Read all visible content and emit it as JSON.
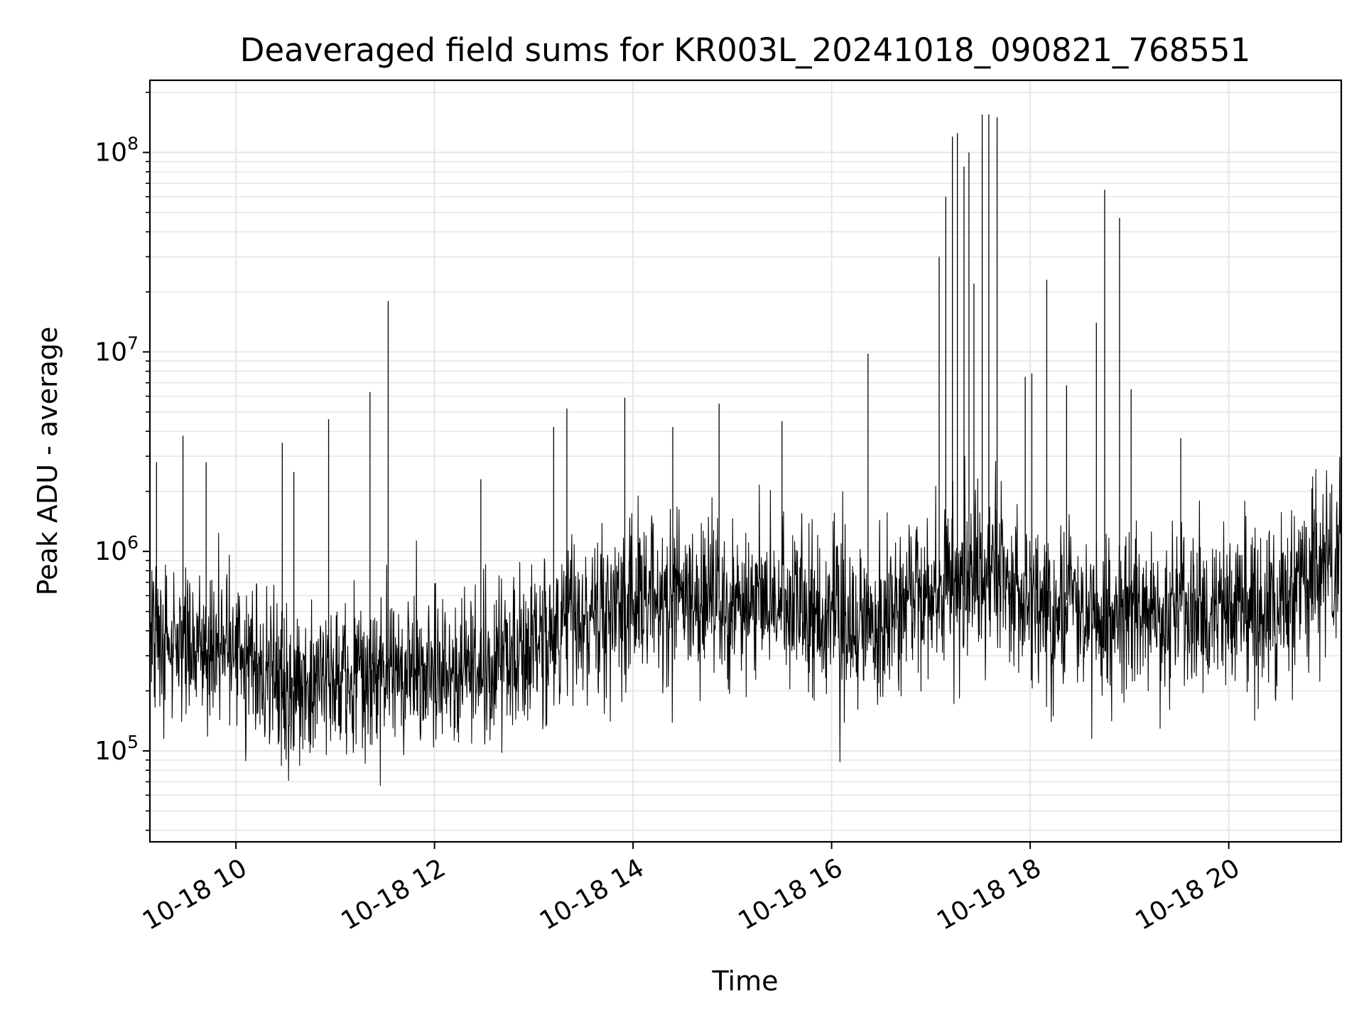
{
  "chart_data": {
    "type": "line",
    "title": "Deaveraged field sums for KR003L_20241018_090821_768551",
    "xlabel": "Time",
    "ylabel": "Peak ADU - average",
    "yscale": "log",
    "ylim": [
      35000,
      230000000
    ],
    "xlim": [
      "2024-10-18 09:08",
      "2024-10-18 21:08"
    ],
    "x_ticks": [
      "10-18 10",
      "10-18 12",
      "10-18 14",
      "10-18 16",
      "10-18 18",
      "10-18 20"
    ],
    "y_ticks": [
      {
        "base": "10",
        "exp": "5",
        "value": 100000
      },
      {
        "base": "10",
        "exp": "6",
        "value": 1000000
      },
      {
        "base": "10",
        "exp": "7",
        "value": 10000000
      },
      {
        "base": "10",
        "exp": "8",
        "value": 100000000
      }
    ],
    "grid": true,
    "line_color": "#000000",
    "grid_color": "#e6e6e6",
    "series": [
      {
        "x": [
          "2024-10-18 09:08",
          "2024-10-18 09:30",
          "2024-10-18 10:00",
          "2024-10-18 10:30",
          "2024-10-18 11:00",
          "2024-10-18 11:30",
          "2024-10-18 12:00",
          "2024-10-18 12:30",
          "2024-10-18 13:00",
          "2024-10-18 13:30",
          "2024-10-18 14:00",
          "2024-10-18 14:30",
          "2024-10-18 15:00",
          "2024-10-18 15:30",
          "2024-10-18 16:00",
          "2024-10-18 16:30",
          "2024-10-18 17:00",
          "2024-10-18 17:30",
          "2024-10-18 18:00",
          "2024-10-18 18:30",
          "2024-10-18 19:00",
          "2024-10-18 19:30",
          "2024-10-18 20:00",
          "2024-10-18 20:30",
          "2024-10-18 21:08"
        ],
        "y": [
          400000,
          350000,
          330000,
          210000,
          260000,
          260000,
          230000,
          290000,
          330000,
          480000,
          560000,
          580000,
          500000,
          620000,
          480000,
          480000,
          600000,
          750000,
          570000,
          480000,
          480000,
          500000,
          480000,
          500000,
          1100000
        ]
      }
    ],
    "spikes": [
      {
        "x": "2024-10-18 09:12",
        "y": 2800000
      },
      {
        "x": "2024-10-18 09:28",
        "y": 3800000
      },
      {
        "x": "2024-10-18 09:42",
        "y": 2800000
      },
      {
        "x": "2024-10-18 10:28",
        "y": 3500000
      },
      {
        "x": "2024-10-18 10:35",
        "y": 2500000
      },
      {
        "x": "2024-10-18 10:56",
        "y": 4600000
      },
      {
        "x": "2024-10-18 11:21",
        "y": 6300000
      },
      {
        "x": "2024-10-18 11:32",
        "y": 18000000
      },
      {
        "x": "2024-10-18 12:28",
        "y": 2300000
      },
      {
        "x": "2024-10-18 13:12",
        "y": 4200000
      },
      {
        "x": "2024-10-18 13:20",
        "y": 5200000
      },
      {
        "x": "2024-10-18 13:55",
        "y": 5900000
      },
      {
        "x": "2024-10-18 14:24",
        "y": 4200000
      },
      {
        "x": "2024-10-18 14:52",
        "y": 5500000
      },
      {
        "x": "2024-10-18 15:30",
        "y": 4500000
      },
      {
        "x": "2024-10-18 16:22",
        "y": 9800000
      },
      {
        "x": "2024-10-18 17:05",
        "y": 30000000
      },
      {
        "x": "2024-10-18 17:09",
        "y": 60000000
      },
      {
        "x": "2024-10-18 17:13",
        "y": 120000000
      },
      {
        "x": "2024-10-18 17:16",
        "y": 125000000
      },
      {
        "x": "2024-10-18 17:20",
        "y": 85000000
      },
      {
        "x": "2024-10-18 17:23",
        "y": 100000000
      },
      {
        "x": "2024-10-18 17:26",
        "y": 22000000
      },
      {
        "x": "2024-10-18 17:31",
        "y": 155000000
      },
      {
        "x": "2024-10-18 17:35",
        "y": 155000000
      },
      {
        "x": "2024-10-18 17:40",
        "y": 150000000
      },
      {
        "x": "2024-10-18 17:57",
        "y": 7500000
      },
      {
        "x": "2024-10-18 18:01",
        "y": 7800000
      },
      {
        "x": "2024-10-18 18:10",
        "y": 23000000
      },
      {
        "x": "2024-10-18 18:22",
        "y": 6800000
      },
      {
        "x": "2024-10-18 18:40",
        "y": 14000000
      },
      {
        "x": "2024-10-18 18:45",
        "y": 65000000
      },
      {
        "x": "2024-10-18 18:54",
        "y": 47000000
      },
      {
        "x": "2024-10-18 19:01",
        "y": 6500000
      },
      {
        "x": "2024-10-18 19:31",
        "y": 3700000
      }
    ]
  }
}
